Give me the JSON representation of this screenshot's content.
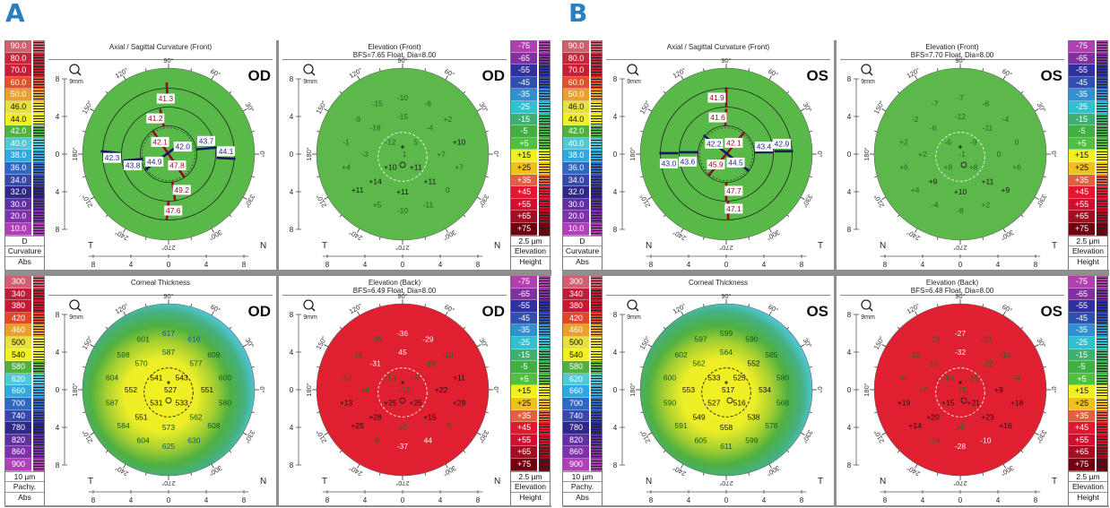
{
  "figure_labels": [
    "A",
    "B"
  ],
  "common": {
    "zoom_label": "9mm",
    "axis_ticks": [
      "8",
      "4",
      "0",
      "4",
      "8"
    ],
    "angle_labels": [
      "0°",
      "30°",
      "60°",
      "90°",
      "120°",
      "150°",
      "180°",
      "210°",
      "240°",
      "270°",
      "300°",
      "330°"
    ]
  },
  "legends": {
    "curvature": {
      "values": [
        "90.0",
        "80.0",
        "70.0",
        "60.0",
        "50.0",
        "46.0",
        "44.0",
        "42.0",
        "40.0",
        "38.0",
        "36.0",
        "34.0",
        "32.0",
        "30.0",
        "20.0",
        "10.0"
      ],
      "colors": [
        "#d0606e",
        "#c4283c",
        "#c81e32",
        "#e0502a",
        "#e8a030",
        "#e8e040",
        "#f2f020",
        "#50b040",
        "#50c8d8",
        "#30a8e0",
        "#3068c0",
        "#3848a8",
        "#302888",
        "#6030a0",
        "#8030a8",
        "#b040b8"
      ],
      "footer": [
        "D",
        "Curvature",
        "Abs"
      ]
    },
    "elevation": {
      "values": [
        "-75",
        "-65",
        "-55",
        "-45",
        "-35",
        "-25",
        "-15",
        "-5",
        "+5",
        "+15",
        "+25",
        "+35",
        "+45",
        "+55",
        "+65",
        "+75"
      ],
      "colors": [
        "#b040b0",
        "#8030a0",
        "#3030a0",
        "#3050b0",
        "#3090d0",
        "#30c0d0",
        "#40b070",
        "#40b040",
        "#50c040",
        "#f2f020",
        "#f0c020",
        "#e06040",
        "#e01830",
        "#d01030",
        "#a01020",
        "#700010"
      ],
      "footer": [
        "2.5 µm",
        "Elevation",
        "Height"
      ]
    },
    "pachy": {
      "values": [
        "300",
        "340",
        "380",
        "420",
        "460",
        "500",
        "540",
        "580",
        "620",
        "660",
        "700",
        "740",
        "780",
        "820",
        "860",
        "900"
      ],
      "colors": [
        "#d06070",
        "#b82038",
        "#c81830",
        "#e04828",
        "#e8a030",
        "#e8e040",
        "#f2f020",
        "#50b040",
        "#50c8d8",
        "#30a8e0",
        "#3068c0",
        "#3848a8",
        "#302888",
        "#6030a0",
        "#8030a8",
        "#b040b8"
      ],
      "footer": [
        "10 µm",
        "Pachy.",
        "Abs"
      ]
    }
  },
  "panels": [
    {
      "label": "A",
      "eye": "OD",
      "corner_left": "T",
      "corner_right": "N",
      "maps": [
        {
          "title": "Axial / Sagittal Curvature (Front)",
          "subtitle": "",
          "values": [
            "41.3",
            "41.2",
            "42.1",
            "42.0",
            "43.7",
            "44.1",
            "42.3",
            "43.8",
            "44.9",
            "47.8",
            "49.2",
            "47.6"
          ],
          "value_colors": [
            "#9a1020",
            "#9a1020",
            "#9a1020",
            "#1a2a90",
            "#1a2a90",
            "#1a2a90",
            "#1a2a90",
            "#1a2a90",
            "#1a2a90",
            "#9a1020",
            "#9a1020",
            "#9a1020"
          ]
        },
        {
          "title": "Elevation (Front)",
          "subtitle": "BFS=7.65 Float, Dia=8.00",
          "values": [
            "-10",
            "-15",
            "-6",
            "-9",
            "-15",
            "+2",
            "-18",
            "-4",
            "-1",
            "-12",
            "5",
            "+10",
            "-3",
            "1",
            "+7",
            "+4",
            "+10",
            "+11",
            "+7",
            "+14",
            "+11",
            "+11",
            "+11",
            "0",
            "+5",
            "-10",
            "-11"
          ]
        },
        {
          "title": "Corneal Thickness",
          "subtitle": "",
          "values": [
            "617",
            "601",
            "616",
            "598",
            "587",
            "609",
            "570",
            "577",
            "604",
            "541",
            "543",
            "600",
            "552",
            "527",
            "551",
            "587",
            "531",
            "533",
            "580",
            "551",
            "562",
            "584",
            "573",
            "608",
            "604",
            "625",
            "630"
          ]
        },
        {
          "title": "Elevation (Back)",
          "subtitle": "BFS=6.49 Float, Dia=8.00",
          "values": [
            "-36",
            "-25",
            "-29",
            "-16",
            "45",
            "-10",
            "-31",
            "-19",
            "-13",
            "-13",
            "-5",
            "+11",
            "+4",
            "-12",
            "+22",
            "+13",
            "+25",
            "+25",
            "+29",
            "+28",
            "+15",
            "+25",
            "+2",
            "-9",
            "0",
            "-37",
            "44"
          ]
        }
      ]
    },
    {
      "label": "B",
      "eye": "OS",
      "corner_left": "N",
      "corner_right": "T",
      "maps": [
        {
          "title": "Axial / Sagittal Curvature (Front)",
          "subtitle": "",
          "values": [
            "41.9",
            "41.6",
            "42.2",
            "42.1",
            "43.4",
            "42.9",
            "43.0",
            "43.6",
            "45.9",
            "44.5",
            "47.7",
            "47.1"
          ],
          "value_colors": [
            "#9a1020",
            "#9a1020",
            "#1a2a90",
            "#9a1020",
            "#1a2a90",
            "#1a2a90",
            "#1a2a90",
            "#1a2a90",
            "#9a1020",
            "#1a2a90",
            "#9a1020",
            "#9a1020"
          ]
        },
        {
          "title": "Elevation (Front)",
          "subtitle": "BFS=7.70 Float, Dia=8.00",
          "values": [
            "-7",
            "-7",
            "-6",
            "-2",
            "-12",
            "-4",
            "-6",
            "-11",
            "+2",
            "-6",
            "-9",
            "0",
            "+2",
            "-1",
            "0",
            "+6",
            "+8",
            "+8",
            "+6",
            "+9",
            "+11",
            "+4",
            "+10",
            "+9",
            "-4",
            "-8",
            "+2"
          ]
        },
        {
          "title": "Corneal Thickness",
          "subtitle": "",
          "values": [
            "599",
            "597",
            "590",
            "602",
            "564",
            "585",
            "562",
            "552",
            "600",
            "533",
            "525",
            "580",
            "553",
            "517",
            "534",
            "590",
            "527",
            "516",
            "568",
            "549",
            "538",
            "591",
            "558",
            "578",
            "605",
            "611",
            "599"
          ]
        },
        {
          "title": "Elevation (Back)",
          "subtitle": "BFS=6.48 Float, Dia=8.00",
          "values": [
            "-27",
            "-19",
            "-20",
            "-12",
            "-32",
            "-14",
            "-17",
            "-22",
            "0",
            "-10",
            "-10",
            "-4",
            "+7",
            "+5",
            "+9",
            "+19",
            "+15",
            "+21",
            "+18",
            "+20",
            "+23",
            "+14",
            "+6",
            "+16",
            "-14",
            "-28",
            "-10"
          ]
        }
      ]
    }
  ]
}
